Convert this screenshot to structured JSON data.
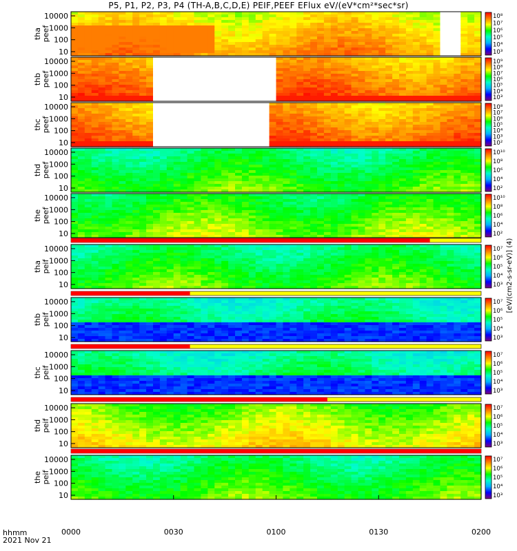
{
  "title": "P5, P1, P2, P3, P4 (TH-A,B,C,D,E) PEIF,PEEF EFlux eV/(eV*cm²*sec*sr)",
  "time_axis": {
    "label_line1": "hhmm",
    "label_line2": "2021 Nov 21",
    "ticks": [
      "0000",
      "0030",
      "0100",
      "0130",
      "0200"
    ]
  },
  "colorbar_units": "[eV/(cm2-s-sr-eV)] (4)",
  "chart_data": {
    "type": "heatmap",
    "title": "P5, P1, P2, P3, P4 (TH-A,B,C,D,E) PEIF,PEEF EFlux eV/(eV*cm²*sec*sr)",
    "xlabel": "hhmm 2021 Nov 21",
    "x_range": [
      "0000",
      "0200"
    ],
    "x_ticks": [
      "0000",
      "0030",
      "0100",
      "0130",
      "0200"
    ],
    "y_scale": "log",
    "z_scale": "log",
    "colormap": [
      "#ffffff",
      "#7f007f",
      "#0000ff",
      "#00b4ff",
      "#00ffc8",
      "#00ff00",
      "#ffff00",
      "#ff8000",
      "#ff0000"
    ],
    "panels": [
      {
        "ylabel": [
          "tha",
          "peef"
        ],
        "yticks": [
          "10000",
          "1000",
          "100",
          "10"
        ],
        "cbar_ticks": [
          "10⁸",
          "10⁷",
          "10⁶",
          "10⁵",
          "10⁴",
          "10³"
        ],
        "fill": 0.78,
        "gaps": [
          [
            1.78,
            1.9
          ]
        ]
      },
      {
        "ylabel": [
          "thb",
          "peef"
        ],
        "yticks": [
          "10000",
          "1000",
          "100",
          "10"
        ],
        "cbar_ticks": [
          "10⁹",
          "10⁸",
          "10⁷",
          "10⁶",
          "10⁵",
          "10⁴",
          "10³"
        ],
        "fill": 0.85,
        "gaps": [
          [
            0.38,
            0.97
          ]
        ],
        "bottom_band": "red"
      },
      {
        "ylabel": [
          "thc",
          "peef"
        ],
        "yticks": [
          "10000",
          "1000",
          "100",
          "10"
        ],
        "cbar_ticks": [
          "10⁸",
          "10⁷",
          "10⁶",
          "10⁵",
          "10⁴",
          "10³",
          "10²"
        ],
        "fill": 0.85,
        "gaps": [
          [
            0.38,
            0.96
          ]
        ],
        "bottom_band": "red"
      },
      {
        "ylabel": [
          "thd",
          "peef"
        ],
        "yticks": [
          "10000",
          "1000",
          "100",
          "10"
        ],
        "cbar_ticks": [
          "10¹⁰",
          "10⁸",
          "10⁶",
          "10⁴",
          "10²"
        ],
        "fill": 0.55,
        "gaps": []
      },
      {
        "ylabel": [
          "the",
          "peef"
        ],
        "yticks": [
          "10000",
          "1000",
          "100",
          "10"
        ],
        "cbar_ticks": [
          "10¹⁰",
          "10⁸",
          "10⁶",
          "10⁴",
          "10²"
        ],
        "fill": 0.6,
        "gaps": []
      },
      {
        "ylabel": [
          "tha",
          "peif"
        ],
        "yticks": [
          "10000",
          "1000",
          "100",
          "10"
        ],
        "cbar_ticks": [
          "10⁷",
          "10⁶",
          "10⁵",
          "10⁴",
          "10³"
        ],
        "fill": 0.55,
        "gaps": []
      },
      {
        "ylabel": [
          "thb",
          "peif"
        ],
        "yticks": [
          "10000",
          "1000",
          "100",
          "10"
        ],
        "cbar_ticks": [
          "10⁷",
          "10⁶",
          "10⁵",
          "10⁴",
          "10³"
        ],
        "fill": 0.5,
        "gaps": [],
        "bottom_band": "blue"
      },
      {
        "ylabel": [
          "thc",
          "peif"
        ],
        "yticks": [
          "10000",
          "1000",
          "100",
          "10"
        ],
        "cbar_ticks": [
          "10⁷",
          "10⁶",
          "10⁵",
          "10⁴",
          "10³"
        ],
        "fill": 0.5,
        "gaps": [],
        "bottom_band": "blue"
      },
      {
        "ylabel": [
          "thd",
          "peif"
        ],
        "yticks": [
          "10000",
          "1000",
          "100",
          "10"
        ],
        "cbar_ticks": [
          "10⁷",
          "10⁶",
          "10⁵",
          "10⁴",
          "10³"
        ],
        "fill": 0.68,
        "gaps": []
      },
      {
        "ylabel": [
          "the",
          "peif"
        ],
        "yticks": [
          "10000",
          "1000",
          "100",
          "10"
        ],
        "cbar_ticks": [
          "10⁷",
          "10⁶",
          "10⁵",
          "10⁴",
          "10³"
        ],
        "fill": 0.55,
        "gaps": []
      }
    ],
    "status_bars": [
      {
        "after_panel": 5,
        "red_until": 1.75
      },
      {
        "after_panel": 6,
        "red_until": 0.58
      },
      {
        "after_panel": 7,
        "red_until": 0.58
      },
      {
        "after_panel": 8,
        "red_until": 1.25
      },
      {
        "after_panel": 9,
        "red_until": 2.0
      }
    ]
  }
}
